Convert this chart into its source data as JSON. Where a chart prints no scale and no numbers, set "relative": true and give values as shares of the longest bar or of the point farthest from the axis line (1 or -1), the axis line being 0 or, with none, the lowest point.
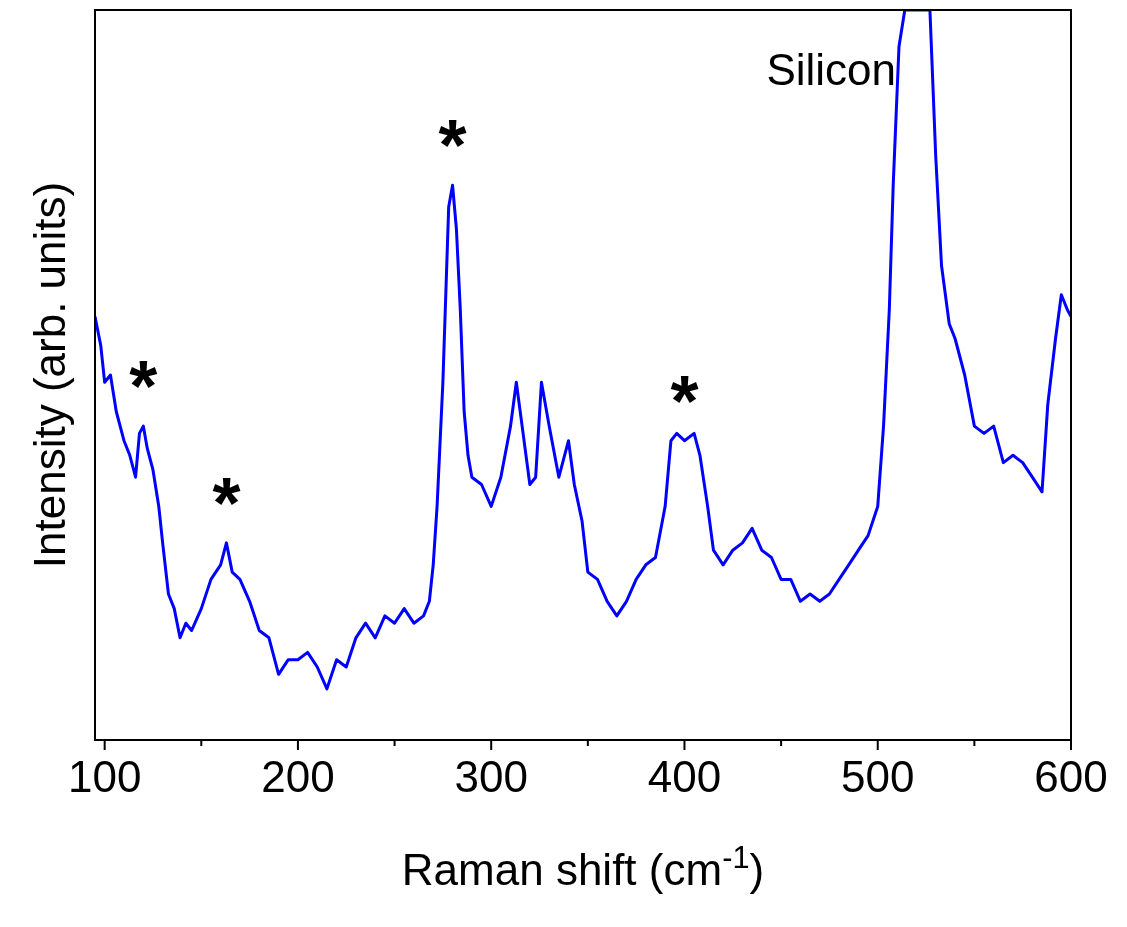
{
  "chart_data": {
    "type": "line",
    "relative": true,
    "xlabel": "Raman shift (cm$^{-1}$)",
    "ylabel": "Intensity (arb. units)",
    "xlim": [
      95,
      600
    ],
    "xticks": [
      100,
      {
        "value": 150,
        "label": null
      },
      200,
      {
        "value": 250,
        "label": null
      },
      300,
      {
        "value": 350,
        "label": null
      },
      400,
      {
        "value": 450,
        "label": null
      },
      500,
      {
        "value": 550,
        "label": null
      },
      600
    ],
    "grid": false,
    "line_style": "solid",
    "annotations": [
      "Silicon",
      {
        "text": "*",
        "x": 120,
        "y": 0.43
      },
      {
        "text": "*",
        "x": 163,
        "y": 0.27
      },
      {
        "text": "*",
        "x": 280,
        "y": 0.76
      },
      {
        "text": "*",
        "x": 400,
        "y": 0.41
      }
    ],
    "series": [
      {
        "color": "#0000ff",
        "x": [
          95,
          98,
          100,
          103,
          106,
          110,
          113,
          116,
          118,
          120,
          122,
          125,
          128,
          130,
          133,
          136,
          139,
          142,
          145,
          150,
          155,
          160,
          163,
          166,
          170,
          175,
          180,
          185,
          190,
          195,
          200,
          205,
          210,
          215,
          220,
          225,
          230,
          235,
          240,
          245,
          250,
          255,
          260,
          265,
          268,
          270,
          272,
          275,
          278,
          280,
          282,
          284,
          286,
          288,
          290,
          295,
          300,
          305,
          310,
          313,
          316,
          320,
          323,
          326,
          330,
          335,
          340,
          343,
          347,
          350,
          355,
          360,
          365,
          370,
          375,
          380,
          385,
          390,
          393,
          396,
          400,
          405,
          408,
          412,
          415,
          420,
          425,
          430,
          435,
          440,
          445,
          450,
          455,
          460,
          465,
          470,
          475,
          480,
          485,
          490,
          495,
          500,
          503,
          506,
          508,
          511,
          514,
          516,
          527,
          530,
          533,
          537,
          540,
          545,
          550,
          555,
          560,
          565,
          570,
          575,
          580,
          585,
          588,
          592,
          595,
          598,
          600
        ],
        "values": [
          0.58,
          0.54,
          0.49,
          0.5,
          0.45,
          0.41,
          0.39,
          0.36,
          0.42,
          0.43,
          0.4,
          0.37,
          0.32,
          0.27,
          0.2,
          0.18,
          0.14,
          0.16,
          0.15,
          0.18,
          0.22,
          0.24,
          0.27,
          0.23,
          0.22,
          0.19,
          0.15,
          0.14,
          0.09,
          0.11,
          0.11,
          0.12,
          0.1,
          0.07,
          0.11,
          0.1,
          0.14,
          0.16,
          0.14,
          0.17,
          0.16,
          0.18,
          0.16,
          0.17,
          0.19,
          0.24,
          0.32,
          0.49,
          0.73,
          0.76,
          0.7,
          0.59,
          0.45,
          0.39,
          0.36,
          0.35,
          0.32,
          0.36,
          0.43,
          0.49,
          0.43,
          0.35,
          0.36,
          0.49,
          0.43,
          0.36,
          0.41,
          0.35,
          0.3,
          0.23,
          0.22,
          0.19,
          0.17,
          0.19,
          0.22,
          0.24,
          0.25,
          0.32,
          0.41,
          0.42,
          0.41,
          0.42,
          0.39,
          0.32,
          0.26,
          0.24,
          0.26,
          0.27,
          0.29,
          0.26,
          0.25,
          0.22,
          0.22,
          0.19,
          0.2,
          0.19,
          0.2,
          0.22,
          0.24,
          0.26,
          0.28,
          0.32,
          0.43,
          0.59,
          0.76,
          0.95,
          1,
          1,
          1,
          0.8,
          0.65,
          0.57,
          0.55,
          0.5,
          0.43,
          0.42,
          0.43,
          0.38,
          0.39,
          0.38,
          0.36,
          0.34,
          0.46,
          0.55,
          0.61,
          0.59,
          0.58
        ]
      }
    ]
  }
}
